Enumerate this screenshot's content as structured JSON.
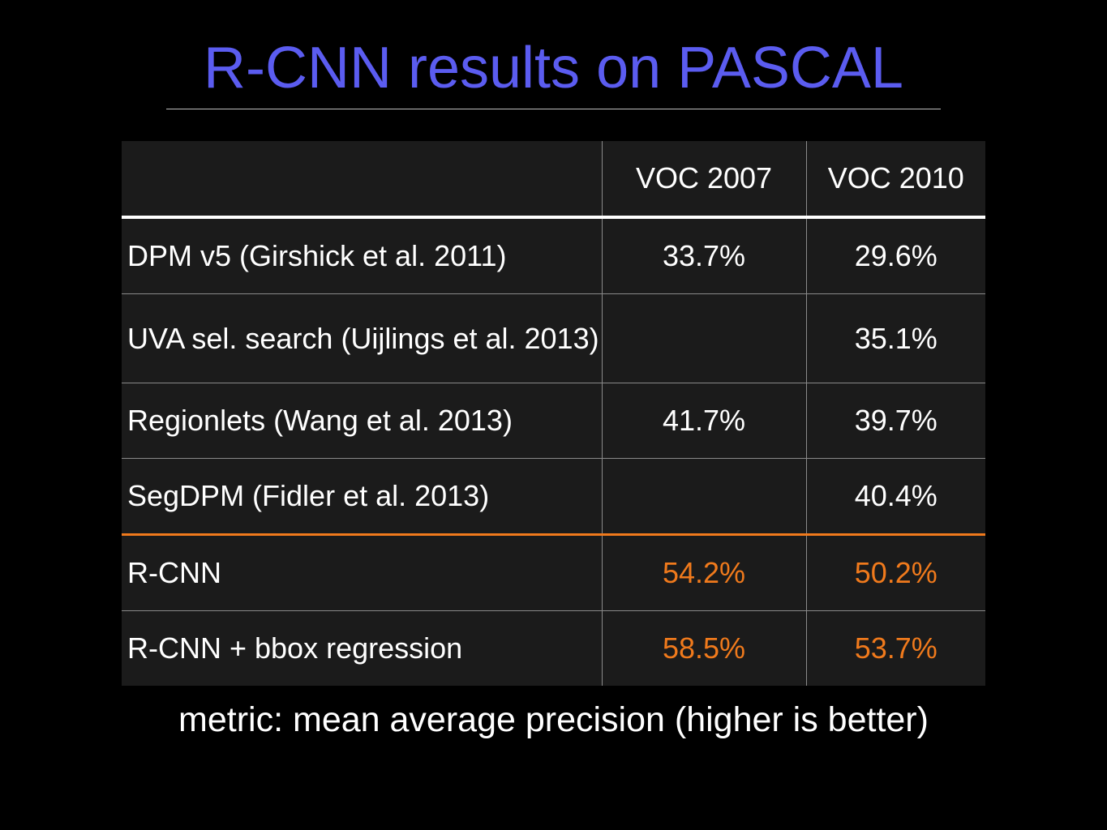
{
  "title": "R-CNN results on PASCAL",
  "table": {
    "columns": [
      "",
      "VOC 2007",
      "VOC 2010"
    ],
    "rows": [
      {
        "method": "DPM v5 (Girshick et al. 2011)",
        "voc2007": "33.7%",
        "voc2010": "29.6%"
      },
      {
        "method": "UVA sel. search (Uijlings et al. 2013)",
        "voc2007": "",
        "voc2010": "35.1%"
      },
      {
        "method": "Regionlets (Wang et al. 2013)",
        "voc2007": "41.7%",
        "voc2010": "39.7%"
      },
      {
        "method": "SegDPM (Fidler et al. 2013)",
        "voc2007": "",
        "voc2010": "40.4%"
      },
      {
        "method": "R-CNN",
        "voc2007": "54.2%",
        "voc2010": "50.2%"
      },
      {
        "method": "R-CNN + bbox regression",
        "voc2007": "58.5%",
        "voc2010": "53.7%"
      }
    ]
  },
  "note": "metric: mean average precision (higher is better)",
  "colors": {
    "title": "#5b5cf0",
    "highlight": "#f07a1c",
    "background": "#000000",
    "table_background": "#1b1b1b"
  }
}
